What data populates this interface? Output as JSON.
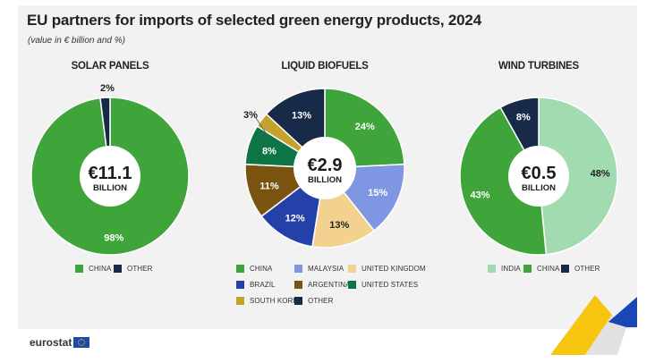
{
  "header": {
    "title": "EU partners for imports of selected green energy products, 2024",
    "subtitle": "(value in € billion and %)"
  },
  "colors": {
    "china": "#3fa53a",
    "other": "#172a47",
    "malaysia": "#7f96e3",
    "united_kingdom": "#f3d28f",
    "brazil": "#2341a8",
    "argentina": "#7a5310",
    "united_states": "#0c7445",
    "south_korea": "#c4a22c",
    "india": "#a2dbb0"
  },
  "chart_data": [
    {
      "type": "pie",
      "title": "SOLAR PANELS",
      "center_value": "€11.1",
      "center_unit": "BILLION",
      "labels": [
        "CHINA",
        "OTHER"
      ],
      "values": [
        98,
        2
      ],
      "value_labels": [
        "98%",
        "2%"
      ],
      "colors": [
        "#3fa53a",
        "#172a47"
      ]
    },
    {
      "type": "pie",
      "title": "LIQUID BIOFUELS",
      "center_value": "€2.9",
      "center_unit": "BILLION",
      "labels": [
        "CHINA",
        "MALAYSIA",
        "UNITED KINGDOM",
        "BRAZIL",
        "ARGENTINA",
        "UNITED STATES",
        "SOUTH KOREA",
        "OTHER"
      ],
      "values": [
        24,
        15,
        13,
        12,
        11,
        8,
        3,
        13
      ],
      "value_labels": [
        "24%",
        "15%",
        "13%",
        "12%",
        "11%",
        "8%",
        "3%",
        "13%"
      ],
      "colors": [
        "#3fa53a",
        "#7f96e3",
        "#f3d28f",
        "#2341a8",
        "#7a5310",
        "#0c7445",
        "#c4a22c",
        "#172a47"
      ]
    },
    {
      "type": "pie",
      "title": "WIND TURBINES",
      "center_value": "€0.5",
      "center_unit": "BILLION",
      "labels": [
        "INDIA",
        "CHINA",
        "OTHER"
      ],
      "values": [
        48,
        43,
        8
      ],
      "value_labels": [
        "48%",
        "43%",
        "8%"
      ],
      "colors": [
        "#a2dbb0",
        "#3fa53a",
        "#172a47"
      ]
    }
  ],
  "footer": {
    "logo_text": "eurostat"
  }
}
